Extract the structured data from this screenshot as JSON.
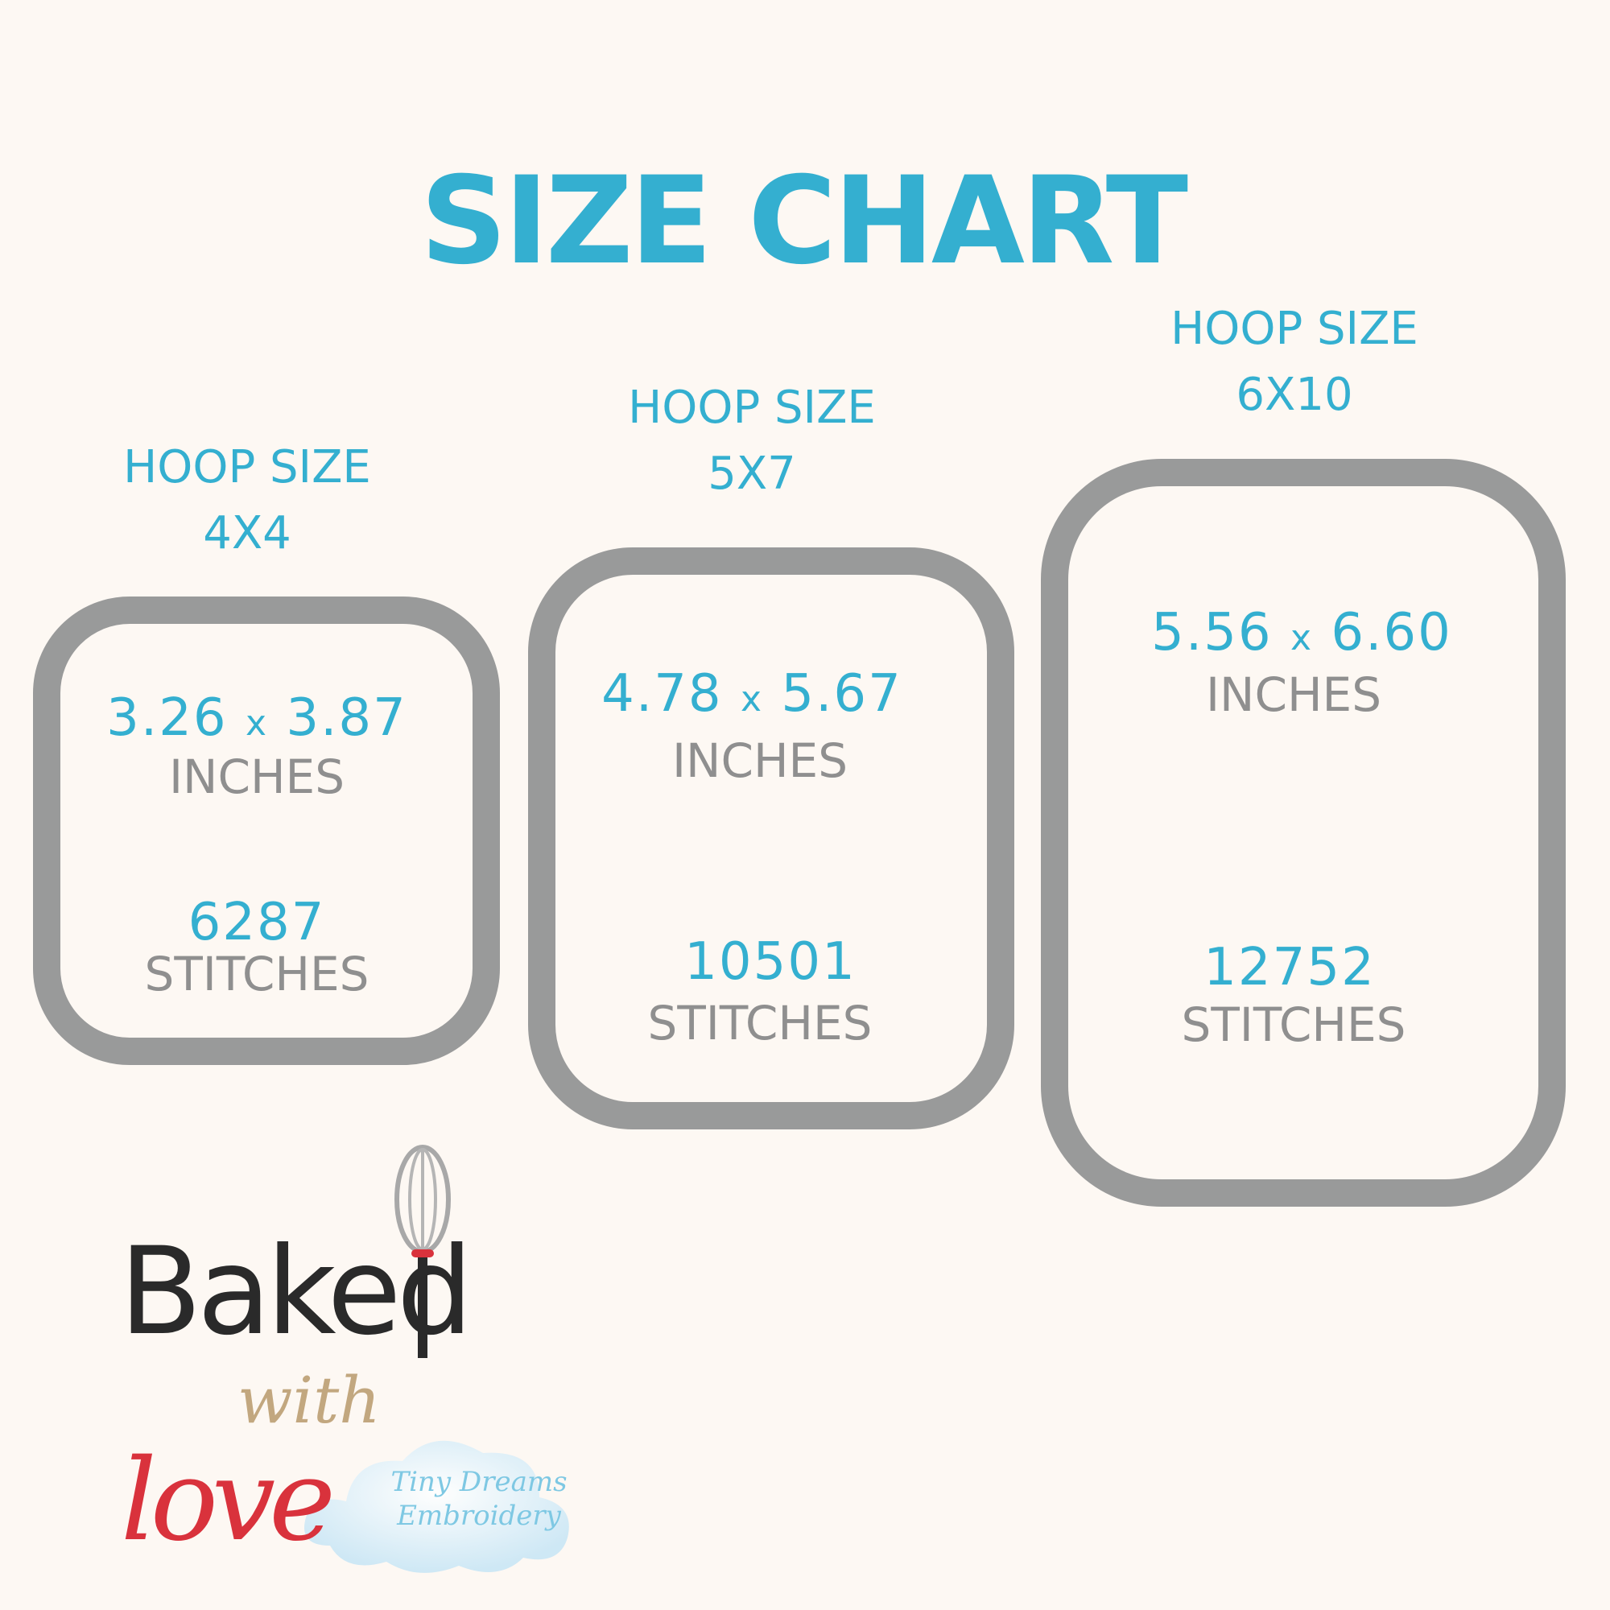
{
  "title": "SIZE CHART",
  "colors": {
    "accent": "#34afd0",
    "hoop": "#999a9a",
    "unit_text": "#8f8f8f",
    "background": "#fdf8f3"
  },
  "hoops": [
    {
      "label": "HOOP SIZE",
      "size": "4X4",
      "width": "3.26",
      "height": "3.87",
      "sep": "x",
      "dim_unit": "INCHES",
      "stitches": "6287",
      "stitch_unit": "STITCHES"
    },
    {
      "label": "HOOP SIZE",
      "size": "5X7",
      "width": "4.78",
      "height": "5.67",
      "sep": "x",
      "dim_unit": "INCHES",
      "stitches": "10501",
      "stitch_unit": "STITCHES"
    },
    {
      "label": "HOOP SIZE",
      "size": "6X10",
      "width": "5.56",
      "height": "6.60",
      "sep": "x",
      "dim_unit": "INCHES",
      "stitches": "12752",
      "stitch_unit": "STITCHES"
    }
  ],
  "logo": {
    "line1": "Baked",
    "line2": "with",
    "line3": "love",
    "icon": "whisk-icon"
  },
  "watermark": {
    "line1": "Tiny Dreams",
    "line2": "Embroidery"
  }
}
